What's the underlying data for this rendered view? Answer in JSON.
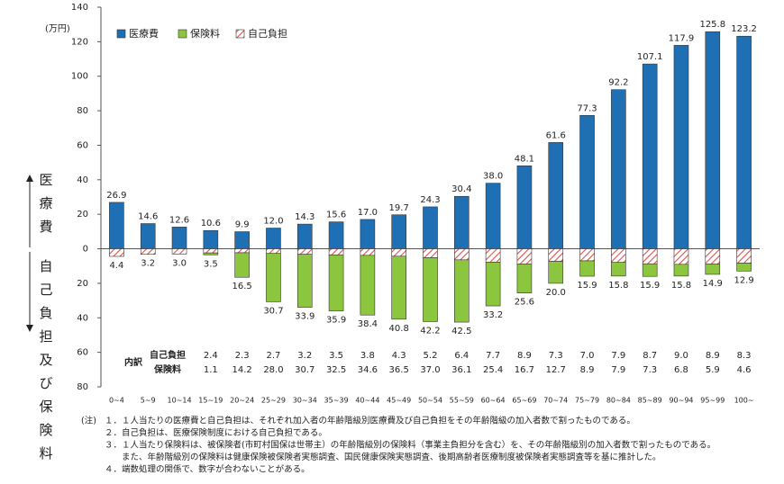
{
  "chart_data": {
    "type": "bar",
    "unit_label": "(万円)",
    "categories": [
      "0~4",
      "5~9",
      "10~14",
      "15~19",
      "20~24",
      "25~29",
      "30~34",
      "35~39",
      "40~44",
      "45~49",
      "50~54",
      "55~59",
      "60~64",
      "65~69",
      "70~74",
      "75~79",
      "80~84",
      "85~89",
      "90~94",
      "95~99",
      "100~"
    ],
    "series": [
      {
        "name": "医療費",
        "color": "#1f6fb5",
        "downward": false,
        "values": [
          26.9,
          14.6,
          12.6,
          10.6,
          9.9,
          12.0,
          14.3,
          15.6,
          17.0,
          19.7,
          24.3,
          30.4,
          38.0,
          48.1,
          61.6,
          77.3,
          92.2,
          107.1,
          117.9,
          125.8,
          123.2
        ],
        "value_labels": [
          "26.9",
          "14.6",
          "12.6",
          "10.6",
          "9.9",
          "12.0",
          "14.3",
          "15.6",
          "17.0",
          "19.7",
          "24.3",
          "30.4",
          "38.0",
          "48.1",
          "61.6",
          "77.3",
          "92.2",
          "107.1",
          "117.9",
          "125.8",
          "123.2"
        ]
      },
      {
        "name": "保険料",
        "color": "#8cc63f",
        "downward": true,
        "values": [
          null,
          null,
          null,
          1.1,
          14.2,
          28.0,
          30.7,
          32.5,
          34.6,
          36.5,
          37.0,
          36.1,
          25.4,
          16.7,
          12.7,
          8.9,
          7.9,
          7.3,
          6.8,
          5.9,
          4.6
        ],
        "value_labels": [
          null,
          null,
          null,
          "1.1",
          "14.2",
          "28.0",
          "30.7",
          "32.5",
          "34.6",
          "36.5",
          "37.0",
          "36.1",
          "25.4",
          "16.7",
          "12.7",
          "8.9",
          "7.9",
          "7.3",
          "6.8",
          "5.9",
          "4.6"
        ]
      },
      {
        "name": "自己負担",
        "color": "#d9534f",
        "downward": true,
        "values": [
          4.4,
          3.2,
          3.0,
          2.4,
          2.3,
          2.7,
          3.2,
          3.5,
          3.8,
          4.3,
          5.2,
          6.4,
          7.7,
          8.9,
          7.3,
          7.0,
          7.9,
          8.7,
          9.0,
          8.9,
          8.3
        ],
        "value_labels": [
          null,
          null,
          null,
          "2.4",
          "2.3",
          "2.7",
          "3.2",
          "3.5",
          "3.8",
          "4.3",
          "5.2",
          "6.4",
          "7.7",
          "8.9",
          "7.3",
          "7.0",
          "7.9",
          "8.7",
          "9.0",
          "8.9",
          "8.3"
        ]
      }
    ],
    "totals": {
      "values": [
        4.4,
        3.2,
        3.0,
        3.5,
        16.5,
        30.7,
        33.9,
        35.9,
        38.4,
        40.8,
        42.2,
        42.5,
        33.2,
        25.6,
        20.0,
        15.9,
        15.8,
        15.9,
        15.8,
        14.9,
        12.9
      ],
      "value_labels": [
        "4.4",
        "3.2",
        "3.0",
        "3.5",
        "16.5",
        "30.7",
        "33.9",
        "35.9",
        "38.4",
        "40.8",
        "42.2",
        "42.5",
        "33.2",
        "25.6",
        "20.0",
        "15.9",
        "15.8",
        "15.9",
        "15.8",
        "14.9",
        "12.9"
      ]
    },
    "breakdown": {
      "title": "内訳",
      "row_self": "自己負担",
      "row_premium": "保険料"
    },
    "upper_axis_label": "医療費",
    "lower_axis_label": "自己負担及び保険料",
    "ylim": [
      -80,
      140
    ],
    "yticks": [
      {
        "value": -80,
        "label": "80"
      },
      {
        "value": -60,
        "label": "60"
      },
      {
        "value": -40,
        "label": "40"
      },
      {
        "value": -20,
        "label": "20"
      },
      0,
      20,
      40,
      60,
      80,
      100,
      120,
      140
    ],
    "grid": false,
    "notes": {
      "prefix": "(注)",
      "lines": [
        "１．１人当たりの医療費と自己負担は、それぞれ加入者の年齢階級別医療費及び自己負担をその年齢階級の加入者数で割ったものである。",
        "２．自己負担は、医療保険制度における自己負担である。",
        "３．１人当たり保険料は、被保険者(市町村国保は世帯主）の年齢階級別の保険料（事業主負担分を含む）を、その年齢階級別の加入者数で割ったものである。",
        "　　また、年齢階級別の保険料は健康保険被保険者実態調査、国民健康保険実態調査、後期高齢者医療制度被保険者実態調査等を基に推計した。",
        "４．端数処理の関係で、数字が合わないことがある。"
      ]
    }
  }
}
